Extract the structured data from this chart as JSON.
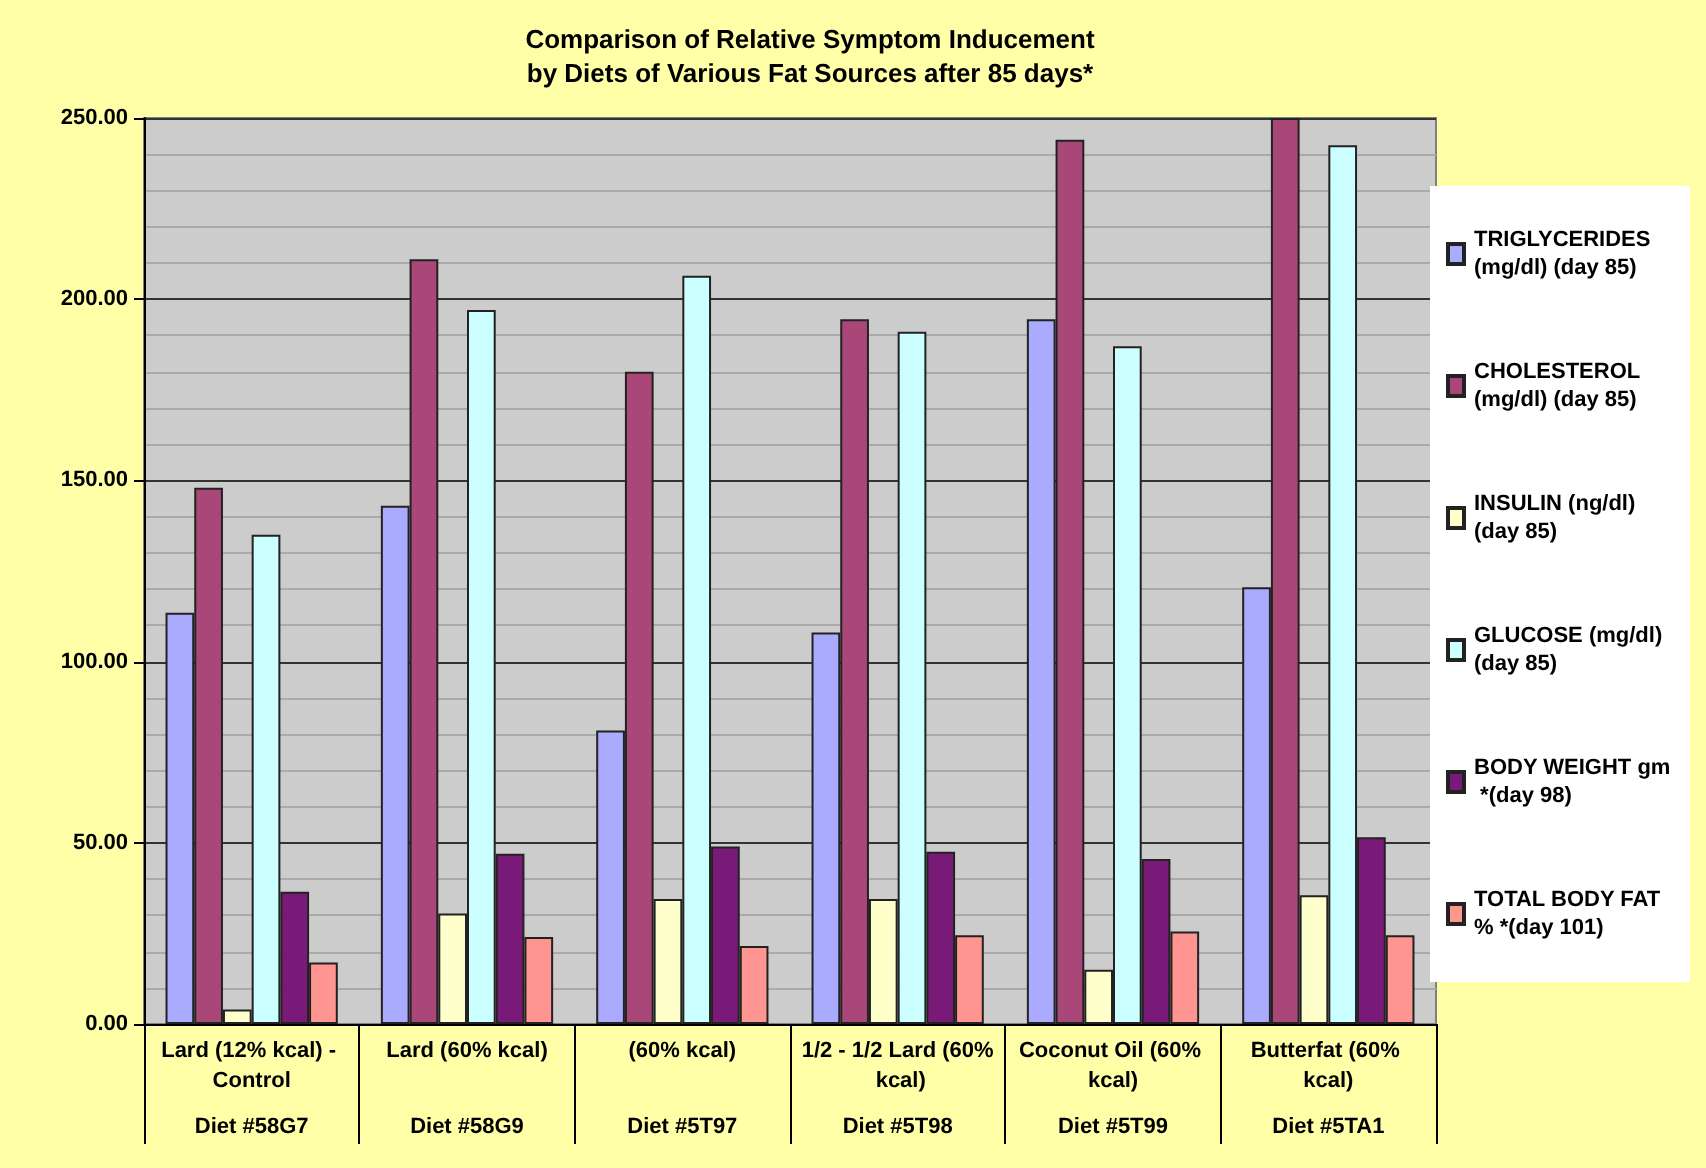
{
  "chart_data": {
    "type": "bar",
    "title": "Comparison of Relative Symptom Inducement\nby Diets of Various Fat Sources after 85 days*",
    "categories": [
      "Lard (12% kcal) - Control",
      "Lard (60% kcal)",
      "(60% kcal)",
      "1/2 - 1/2 Lard (60% kcal)",
      "Coconut Oil (60% kcal)",
      "Butterfat (60% kcal)"
    ],
    "series": [
      {
        "name": "TRIGLYCERIDES (mg/dl) (day 85)",
        "color": "#aaaaff",
        "values": [
          113.5,
          143,
          81,
          108,
          194.5,
          120.5
        ]
      },
      {
        "name": "CHOLESTEROL (mg/dl) (day 85)",
        "color": "#a94878",
        "values": [
          148,
          211,
          180,
          194.5,
          244,
          250
        ]
      },
      {
        "name": "INSULIN (ng/dl) (day 85)",
        "color": "#ffffcc",
        "values": [
          4,
          30.5,
          34.5,
          34.5,
          15,
          35.5
        ]
      },
      {
        "name": "GLUCOSE (mg/dl) (day 85)",
        "color": "#ccffff",
        "values": [
          135,
          197,
          206.5,
          191,
          187,
          242.5
        ]
      },
      {
        "name": "BODY WEIGHT gm *(day 98)",
        "color": "#7a1a78",
        "values": [
          36.5,
          47,
          49,
          47.5,
          45.5,
          51.5
        ]
      },
      {
        "name": "TOTAL BODY FAT % *(day 101)",
        "color": "#ff9590",
        "values": [
          17,
          24,
          21.5,
          24.5,
          25.5,
          24.5
        ]
      }
    ],
    "ylim": [
      0,
      250
    ],
    "yticks": [
      {
        "value": 0,
        "label": "0.00"
      },
      {
        "value": 50,
        "label": "50.00"
      },
      {
        "value": 100,
        "label": "100.00"
      },
      {
        "value": 150,
        "label": "150.00"
      },
      {
        "value": 200,
        "label": "200.00"
      },
      {
        "value": 250,
        "label": "250.00"
      }
    ],
    "grid": true,
    "legend": "right",
    "annotations": [
      "Diet #58G7",
      "Diet #58G9",
      "Diet #5T97",
      "Diet #5T98",
      "Diet #5T99",
      "Diet #5TA1"
    ]
  }
}
